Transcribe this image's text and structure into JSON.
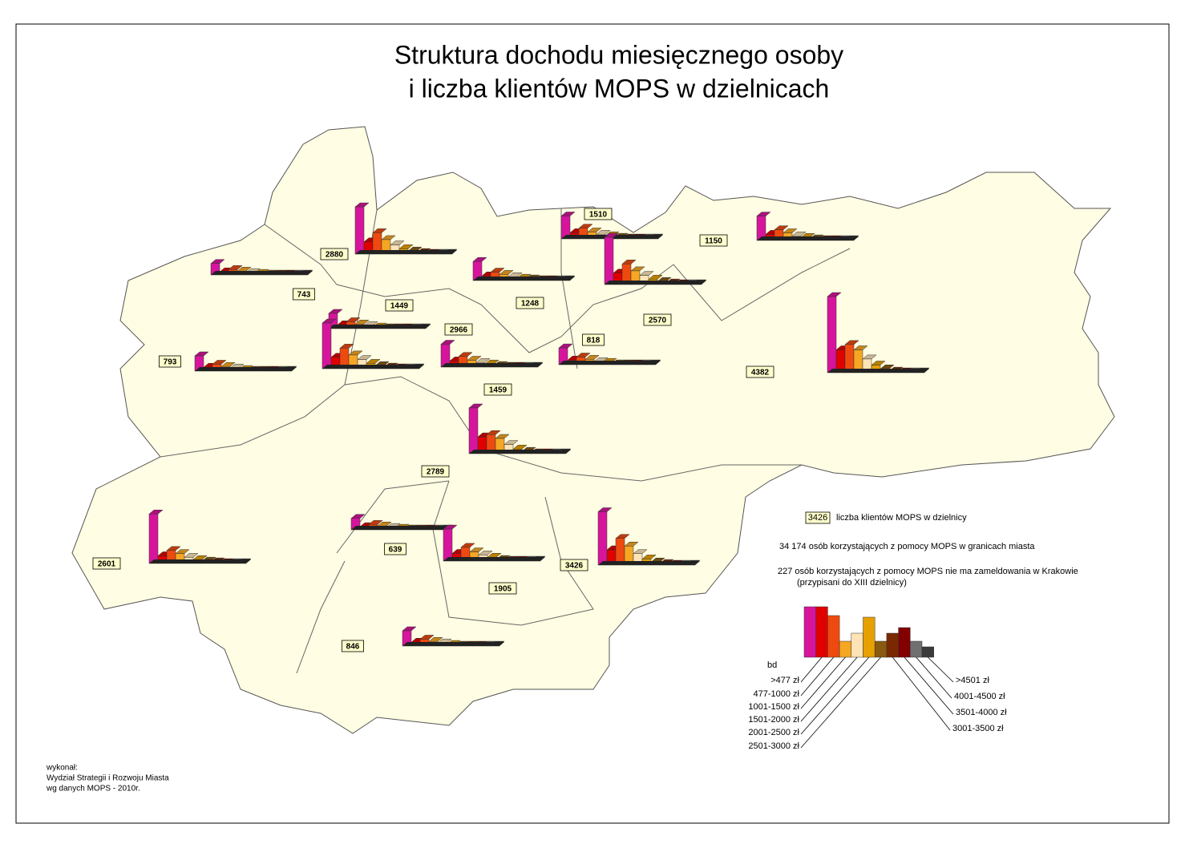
{
  "title": [
    "Struktura dochodu miesięcznego osoby",
    "i liczba klientów MOPS w dzielnicach"
  ],
  "districts": [
    {
      "clients": 2880,
      "income": [
        62,
        16,
        28,
        19,
        12,
        7,
        4,
        2,
        1,
        1,
        1
      ]
    },
    {
      "clients": 1510,
      "income": [
        30,
        8,
        14,
        9,
        6,
        4,
        2,
        1,
        1,
        1,
        1
      ]
    },
    {
      "clients": 1150,
      "income": [
        32,
        8,
        14,
        10,
        6,
        4,
        2,
        1,
        1,
        1,
        1
      ]
    },
    {
      "clients": 743,
      "income": [
        15,
        4,
        7,
        5,
        3,
        2,
        1,
        1,
        1,
        1,
        1
      ]
    },
    {
      "clients": 1449,
      "income": [
        20,
        5,
        9,
        6,
        4,
        2,
        1,
        1,
        1,
        1,
        1
      ]
    },
    {
      "clients": 1248,
      "income": [
        25,
        6,
        11,
        8,
        5,
        3,
        2,
        1,
        1,
        1,
        1
      ]
    },
    {
      "clients": 2966,
      "income": [
        60,
        15,
        27,
        18,
        12,
        7,
        4,
        2,
        1,
        1,
        1
      ]
    },
    {
      "clients": 818,
      "income": [
        22,
        6,
        10,
        7,
        4,
        3,
        1,
        1,
        1,
        1,
        1
      ]
    },
    {
      "clients": 2570,
      "income": [
        62,
        15,
        27,
        18,
        12,
        7,
        4,
        2,
        1,
        1,
        1
      ]
    },
    {
      "clients": 793,
      "income": [
        20,
        5,
        9,
        6,
        4,
        2,
        1,
        1,
        1,
        1,
        1
      ]
    },
    {
      "clients": 4382,
      "income": [
        100,
        30,
        37,
        30,
        18,
        10,
        5,
        2,
        1,
        1,
        1
      ]
    },
    {
      "clients": 1459,
      "income": [
        30,
        8,
        14,
        9,
        6,
        4,
        2,
        1,
        1,
        1,
        1
      ]
    },
    {
      "clients": 2789,
      "income": [
        60,
        22,
        25,
        20,
        12,
        6,
        3,
        1,
        1,
        1,
        1
      ]
    },
    {
      "clients": 2601,
      "income": [
        65,
        10,
        17,
        13,
        8,
        5,
        3,
        2,
        1,
        1,
        1
      ]
    },
    {
      "clients": 639,
      "income": [
        15,
        4,
        7,
        5,
        3,
        2,
        1,
        1,
        1,
        1,
        1
      ]
    },
    {
      "clients": 3426,
      "income": [
        70,
        20,
        35,
        25,
        15,
        8,
        4,
        2,
        1,
        1,
        1
      ]
    },
    {
      "clients": 1905,
      "income": [
        42,
        10,
        18,
        12,
        8,
        5,
        2,
        1,
        1,
        1,
        1
      ]
    },
    {
      "clients": 846,
      "income": [
        20,
        5,
        9,
        6,
        4,
        2,
        1,
        1,
        1,
        1,
        1
      ]
    }
  ],
  "legend": {
    "sample": "3426",
    "sample_label": "liczba klientów MOPS w dzielnicy",
    "notes": [
      "34 174 osób korzystających z pomocy MOPS w granicach miasta",
      "227 osób korzystających z pomocy MOPS nie ma zameldowania w Krakowie",
      "(przypisani do XIII dzielnicy)"
    ],
    "categories": [
      "bd",
      ">477 zł",
      "477-1000 zł",
      "1001-1500 zł",
      "1501-2000 zł",
      "2001-2500 zł",
      "2501-3000 zł",
      "3001-3500 zł",
      "3501-4000 zł",
      "4001-4500 zł",
      ">4501 zł"
    ],
    "colors": [
      "#d6159c",
      "#e00000",
      "#ee4a10",
      "#f5a623",
      "#fde3b6",
      "#e6a000",
      "#8a5a10",
      "#7a2800",
      "#820000",
      "#707070",
      "#3a3a3a"
    ]
  },
  "footer": [
    "wykonał:",
    "Wydział Strategii i Rozwoju Miasta",
    "wg danych MOPS - 2010r."
  ]
}
